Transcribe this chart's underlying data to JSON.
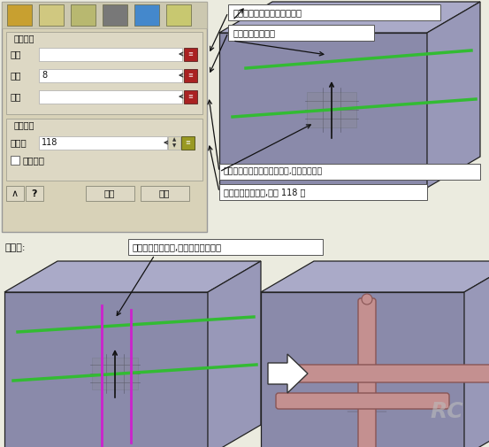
{
  "bg_color": "#ebebdf",
  "panel_bg": "#d8d2b8",
  "panel_border": "#999999",
  "grp_bg": "#ddd8c4",
  "white": "#ffffff",
  "red_btn": "#aa2222",
  "yellow_btn": "#999922",
  "box_front": "#8a8aaa",
  "box_top": "#aaaac8",
  "box_right": "#9898b8",
  "box_edge": "#222222",
  "green": "#33bb33",
  "magenta": "#cc22cc",
  "pipe_fill": "#c49090",
  "pipe_edge": "#885555",
  "ann_bg": "#ffffff",
  "ann_edge": "#555555",
  "arrow_color": "#111111",
  "text_color": "#111111",
  "gray_line": "#555566",
  "required_label": "必选输入",
  "optional_label": "可选输入",
  "field_moju": "模具",
  "field_zhijing": "直径",
  "field_quxian": "曲线",
  "field_dingjiaojiao": "顶锥角",
  "field_zhijing_val": "8",
  "field_dingjiaojiao_val": "118",
  "checkbox_label": "保留曲线",
  "btn_ok": "确定",
  "btn_cancel": "取消",
  "effect_label": "效果图:",
  "ann1": "选择需要建立冷却运水的实体",
  "ann2": "输入冷却运水直径",
  "ann3": "选择或绘制冷却运水平面草图,可多草图选择",
  "ann4": "输入钻头刀头角度,默认 118 度",
  "ann5": "直接选取两个草图,得到右边的运水图",
  "watermark": "RC"
}
